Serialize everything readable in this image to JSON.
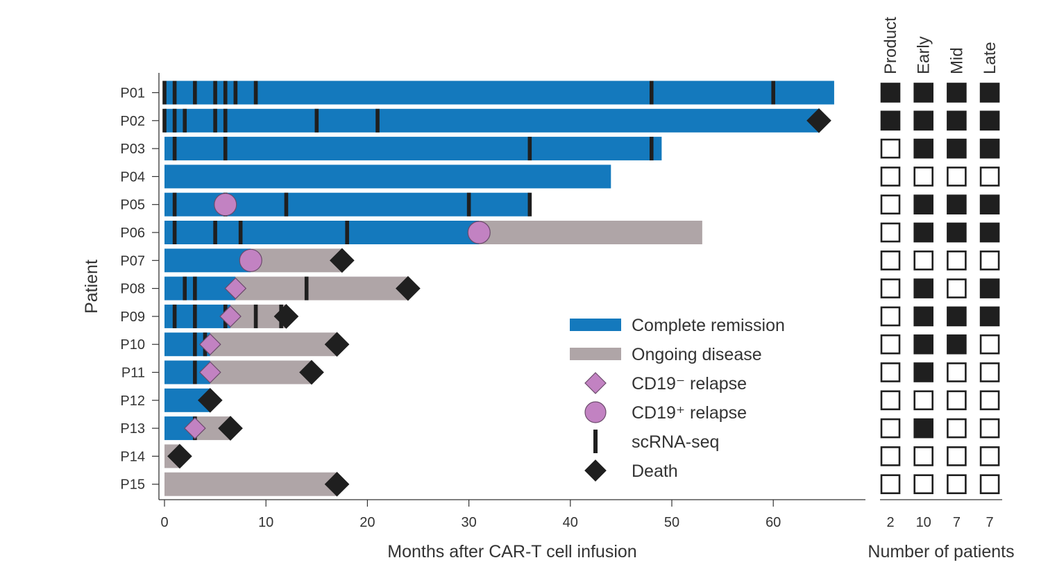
{
  "chart_data": {
    "type": "swimmer",
    "xlabel": "Months after CAR-T cell infusion",
    "ylabel": "Patient",
    "xlim": [
      0,
      66
    ],
    "xticks": [
      0,
      10,
      20,
      30,
      40,
      50,
      60
    ],
    "colors": {
      "complete_remission": "#1479bd",
      "ongoing_disease": "#afa5a7",
      "relapse": "#c282c2",
      "marker": "#1f1f1f"
    },
    "legend": {
      "complete_remission": "Complete remission",
      "ongoing_disease": "Ongoing disease",
      "cd19_neg_relapse": "CD19⁻ relapse",
      "cd19_pos_relapse": "CD19⁺ relapse",
      "scrnaseq": "scRNA-seq",
      "death": "Death"
    },
    "patients": [
      {
        "id": "P01",
        "cr": [
          0,
          66
        ],
        "od": null,
        "scrna": [
          0,
          1,
          3,
          5,
          6,
          7,
          9,
          48,
          60
        ],
        "cd19_neg": null,
        "cd19_pos": null,
        "death": null
      },
      {
        "id": "P02",
        "cr": [
          0,
          64.5
        ],
        "od": null,
        "scrna": [
          0,
          1,
          2,
          5,
          6,
          15,
          21
        ],
        "cd19_neg": null,
        "cd19_pos": null,
        "death": 64.5
      },
      {
        "id": "P03",
        "cr": [
          0,
          49
        ],
        "od": null,
        "scrna": [
          1,
          6,
          36,
          48
        ],
        "cd19_neg": null,
        "cd19_pos": null,
        "death": null
      },
      {
        "id": "P04",
        "cr": [
          0,
          44
        ],
        "od": null,
        "scrna": [],
        "cd19_neg": null,
        "cd19_pos": null,
        "death": null
      },
      {
        "id": "P05",
        "cr": [
          0,
          36
        ],
        "od": null,
        "scrna": [
          1,
          6,
          12,
          30,
          36
        ],
        "cd19_neg": null,
        "cd19_pos": 6,
        "death": null
      },
      {
        "id": "P06",
        "cr": [
          0,
          31
        ],
        "od": [
          31,
          53
        ],
        "scrna": [
          1,
          5,
          7.5,
          18
        ],
        "cd19_neg": null,
        "cd19_pos": 31,
        "death": null
      },
      {
        "id": "P07",
        "cr": [
          0,
          8.5
        ],
        "od": [
          8.5,
          17.5
        ],
        "scrna": [],
        "cd19_neg": null,
        "cd19_pos": 8.5,
        "death": 17.5
      },
      {
        "id": "P08",
        "cr": [
          0,
          7
        ],
        "od": [
          7,
          24
        ],
        "scrna": [
          2,
          3,
          14
        ],
        "cd19_neg": 7,
        "cd19_pos": null,
        "death": 24
      },
      {
        "id": "P09",
        "cr": [
          0,
          6.5
        ],
        "od": [
          6.5,
          12
        ],
        "scrna": [
          1,
          3,
          6,
          9,
          11.5
        ],
        "cd19_neg": 6.5,
        "cd19_pos": null,
        "death": 12
      },
      {
        "id": "P10",
        "cr": [
          0,
          4.5
        ],
        "od": [
          4.5,
          17
        ],
        "scrna": [
          3,
          4
        ],
        "cd19_neg": 4.5,
        "cd19_pos": null,
        "death": 17
      },
      {
        "id": "P11",
        "cr": [
          0,
          4.5
        ],
        "od": [
          4.5,
          14.5
        ],
        "scrna": [
          3
        ],
        "cd19_neg": 4.5,
        "cd19_pos": null,
        "death": 14.5
      },
      {
        "id": "P12",
        "cr": [
          0,
          4.5
        ],
        "od": null,
        "scrna": [],
        "cd19_neg": null,
        "cd19_pos": null,
        "death": 4.5
      },
      {
        "id": "P13",
        "cr": [
          0,
          3
        ],
        "od": [
          3,
          6.5
        ],
        "scrna": [
          3
        ],
        "cd19_neg": 3,
        "cd19_pos": null,
        "death": 6.5
      },
      {
        "id": "P14",
        "cr": null,
        "od": [
          0,
          1.5
        ],
        "scrna": [],
        "cd19_neg": null,
        "cd19_pos": null,
        "death": 1.5
      },
      {
        "id": "P15",
        "cr": null,
        "od": [
          0,
          17
        ],
        "scrna": [],
        "cd19_neg": null,
        "cd19_pos": null,
        "death": 17
      }
    ],
    "sample_columns": [
      "Product",
      "Early",
      "Mid",
      "Late"
    ],
    "sample_counts": [
      2,
      10,
      7,
      7
    ],
    "sample_matrix": [
      [
        1,
        1,
        1,
        1
      ],
      [
        1,
        1,
        1,
        1
      ],
      [
        0,
        1,
        1,
        1
      ],
      [
        0,
        0,
        0,
        0
      ],
      [
        0,
        1,
        1,
        1
      ],
      [
        0,
        1,
        1,
        1
      ],
      [
        0,
        0,
        0,
        0
      ],
      [
        0,
        1,
        0,
        1
      ],
      [
        0,
        1,
        1,
        1
      ],
      [
        0,
        1,
        1,
        0
      ],
      [
        0,
        1,
        0,
        0
      ],
      [
        0,
        0,
        0,
        0
      ],
      [
        0,
        1,
        0,
        0
      ],
      [
        0,
        0,
        0,
        0
      ],
      [
        0,
        0,
        0,
        0
      ]
    ],
    "sample_xlabel": "Number of patients"
  }
}
